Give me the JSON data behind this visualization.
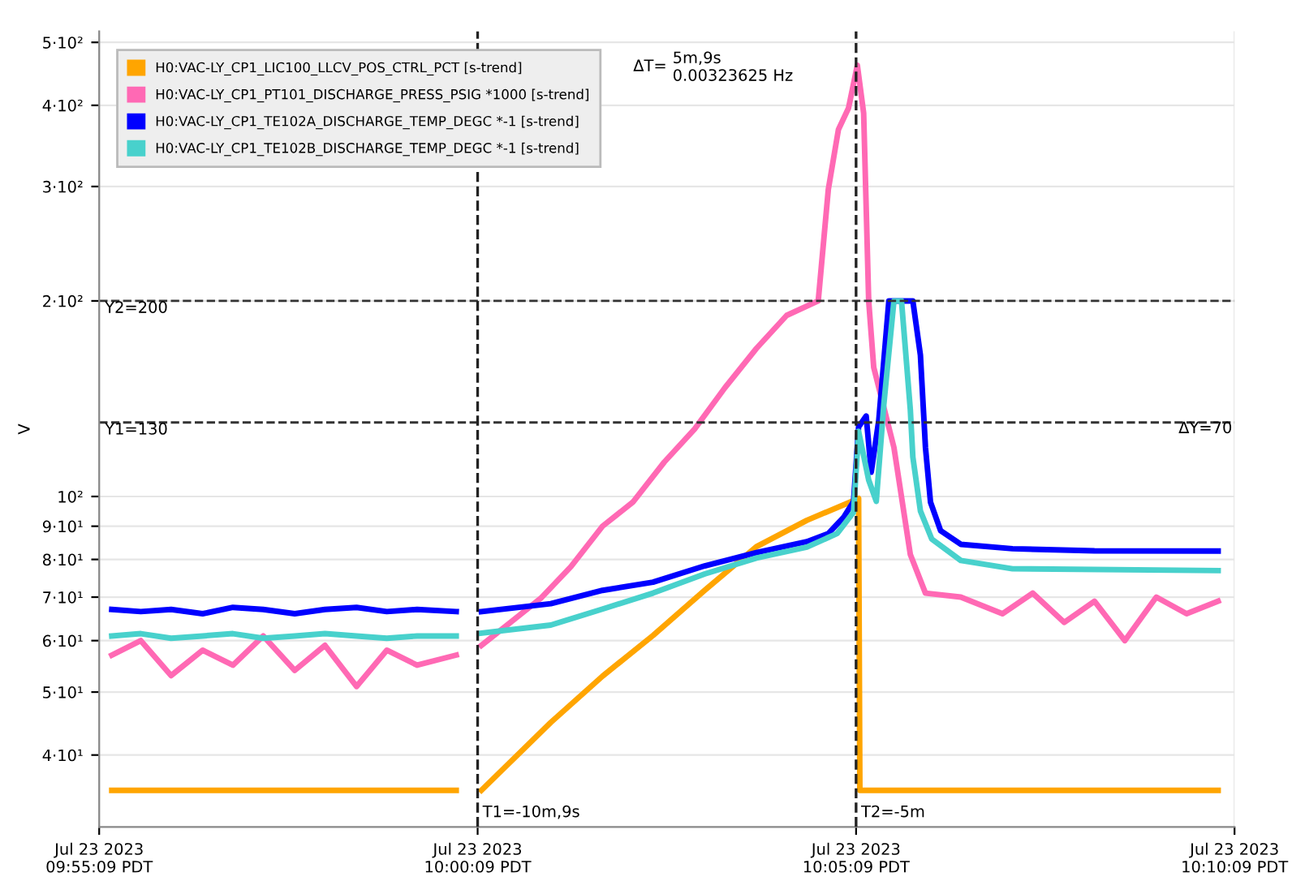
{
  "chart_data": {
    "type": "line",
    "ylabel": "V",
    "log": "y",
    "grid": true,
    "legend": "top left",
    "ylim": [
      31,
      520
    ],
    "yticks": [
      {
        "value": 40,
        "label": "4·10¹"
      },
      {
        "value": 50,
        "label": "5·10¹"
      },
      {
        "value": 60,
        "label": "6·10¹"
      },
      {
        "value": 70,
        "label": "7·10¹"
      },
      {
        "value": 80,
        "label": "8·10¹"
      },
      {
        "value": 90,
        "label": "9·10¹"
      },
      {
        "value": 100,
        "label": "10²"
      },
      {
        "value": 200,
        "label": "2·10²"
      },
      {
        "value": 300,
        "label": "3·10²"
      },
      {
        "value": 400,
        "label": "4·10²"
      },
      {
        "value": 500,
        "label": "5·10²"
      }
    ],
    "xlim": [
      "2023-07-23T09:55:09",
      "2023-07-23T10:10:09"
    ],
    "xticks": [
      {
        "value": "2023-07-23T09:55:09",
        "label": "Jul 23 2023\n09:55:09 PDT"
      },
      {
        "value": "2023-07-23T10:00:09",
        "label": "Jul 23 2023\n10:00:09 PDT"
      },
      {
        "value": "2023-07-23T10:05:09",
        "label": "Jul 23 2023\n10:05:09 PDT"
      },
      {
        "value": "2023-07-23T10:10:09",
        "label": "Jul 23 2023\n10:10:09 PDT"
      }
    ],
    "series": [
      {
        "name": "H0:VAC-LY_CP1_LIC100_LLCV_POS_CTRL_PCT [s-trend]",
        "color": "#ffa500",
        "x": [
          "2023-07-23T09:55:19",
          "2023-07-23T09:59:52",
          "2023-07-23T10:00:00",
          "2023-07-23T10:00:12",
          "2023-07-23T10:01:07",
          "2023-07-23T10:01:48",
          "2023-07-23T10:02:28",
          "2023-07-23T10:03:09",
          "2023-07-23T10:03:50",
          "2023-07-23T10:04:30",
          "2023-07-23T10:05:11",
          "2023-07-23T10:05:12",
          "2023-07-23T10:09:56"
        ],
        "values": [
          35.3,
          35.3,
          null,
          35.3,
          44.9,
          52.9,
          61.1,
          71.7,
          83.7,
          91.9,
          99.3,
          35.3,
          35.3
        ]
      },
      {
        "name": "H0:VAC-LY_CP1_PT101_DISCHARGE_PRESS_PSIG *1000 [s-trend]",
        "color": "#ff69b4",
        "x": [
          "2023-07-23T09:55:19",
          "2023-07-23T09:55:42",
          "2023-07-23T09:56:06",
          "2023-07-23T09:56:31",
          "2023-07-23T09:56:55",
          "2023-07-23T09:57:19",
          "2023-07-23T09:57:44",
          "2023-07-23T09:58:08",
          "2023-07-23T09:58:33",
          "2023-07-23T09:58:57",
          "2023-07-23T09:59:21",
          "2023-07-23T09:59:52",
          "2023-07-23T10:00:00",
          "2023-07-23T10:00:12",
          "2023-07-23T10:00:35",
          "2023-07-23T10:00:59",
          "2023-07-23T10:01:23",
          "2023-07-23T10:01:48",
          "2023-07-23T10:02:12",
          "2023-07-23T10:02:37",
          "2023-07-23T10:03:01",
          "2023-07-23T10:03:25",
          "2023-07-23T10:03:50",
          "2023-07-23T10:04:14",
          "2023-07-23T10:04:39",
          "2023-07-23T10:04:47",
          "2023-07-23T10:04:55",
          "2023-07-23T10:05:03",
          "2023-07-23T10:05:10",
          "2023-07-23T10:05:15",
          "2023-07-23T10:05:19",
          "2023-07-23T10:05:23",
          "2023-07-23T10:05:39",
          "2023-07-23T10:05:52",
          "2023-07-23T10:06:04",
          "2023-07-23T10:06:32",
          "2023-07-23T10:07:05",
          "2023-07-23T10:07:29",
          "2023-07-23T10:07:54",
          "2023-07-23T10:08:18",
          "2023-07-23T10:08:42",
          "2023-07-23T10:09:07",
          "2023-07-23T10:09:31",
          "2023-07-23T10:09:56"
        ],
        "values": [
          57,
          60,
          53,
          58,
          55,
          61,
          54,
          59,
          51,
          58,
          55,
          57,
          null,
          59,
          64,
          69.7,
          78,
          90,
          98,
          113,
          127,
          147,
          169,
          190,
          200,
          297,
          367,
          396,
          461,
          389,
          200,
          158,
          119,
          81.4,
          71,
          70,
          66,
          71,
          64,
          69,
          60,
          70,
          66,
          69
        ]
      },
      {
        "name": "H0:VAC-LY_CP1_TE102A_DISCHARGE_TEMP_DEGC *-1 [s-trend]",
        "color": "#0000ff",
        "x": [
          "2023-07-23T09:55:19",
          "2023-07-23T09:55:42",
          "2023-07-23T09:56:06",
          "2023-07-23T09:56:31",
          "2023-07-23T09:56:55",
          "2023-07-23T09:57:19",
          "2023-07-23T09:57:44",
          "2023-07-23T09:58:08",
          "2023-07-23T09:58:33",
          "2023-07-23T09:58:57",
          "2023-07-23T09:59:21",
          "2023-07-23T09:59:52",
          "2023-07-23T10:00:00",
          "2023-07-23T10:00:12",
          "2023-07-23T10:01:07",
          "2023-07-23T10:01:48",
          "2023-07-23T10:02:28",
          "2023-07-23T10:03:09",
          "2023-07-23T10:03:50",
          "2023-07-23T10:04:30",
          "2023-07-23T10:04:47",
          "2023-07-23T10:04:59",
          "2023-07-23T10:05:07",
          "2023-07-23T10:05:11",
          "2023-07-23T10:05:17",
          "2023-07-23T10:05:21",
          "2023-07-23T10:05:27",
          "2023-07-23T10:05:35",
          "2023-07-23T10:05:54",
          "2023-07-23T10:06:00",
          "2023-07-23T10:06:04",
          "2023-07-23T10:06:08",
          "2023-07-23T10:06:16",
          "2023-07-23T10:06:32",
          "2023-07-23T10:07:13",
          "2023-07-23T10:08:18",
          "2023-07-23T10:09:56"
        ],
        "values": [
          67,
          66.5,
          67,
          66,
          67.5,
          67,
          66,
          67,
          67.5,
          66.5,
          67,
          66.5,
          null,
          66.5,
          68.4,
          71.7,
          73.8,
          78.2,
          82,
          85.2,
          87.7,
          92.8,
          98.3,
          128,
          133,
          109,
          131,
          200,
          200,
          165,
          119,
          98,
          88.6,
          84.4,
          83.1,
          82.5,
          82.4
        ]
      },
      {
        "name": "H0:VAC-LY_CP1_TE102B_DISCHARGE_TEMP_DEGC *-1 [s-trend]",
        "color": "#48d1cc",
        "x": [
          "2023-07-23T09:55:19",
          "2023-07-23T09:55:42",
          "2023-07-23T09:56:06",
          "2023-07-23T09:56:31",
          "2023-07-23T09:56:55",
          "2023-07-23T09:57:19",
          "2023-07-23T09:57:44",
          "2023-07-23T09:58:08",
          "2023-07-23T09:58:33",
          "2023-07-23T09:58:57",
          "2023-07-23T09:59:21",
          "2023-07-23T09:59:52",
          "2023-07-23T10:00:00",
          "2023-07-23T10:00:12",
          "2023-07-23T10:01:07",
          "2023-07-23T10:01:48",
          "2023-07-23T10:02:28",
          "2023-07-23T10:03:09",
          "2023-07-23T10:03:50",
          "2023-07-23T10:04:30",
          "2023-07-23T10:04:54",
          "2023-07-23T10:05:07",
          "2023-07-23T10:05:11",
          "2023-07-23T10:05:19",
          "2023-07-23T10:05:25",
          "2023-07-23T10:05:31",
          "2023-07-23T10:05:39",
          "2023-07-23T10:05:45",
          "2023-07-23T10:05:52",
          "2023-07-23T10:05:54",
          "2023-07-23T10:06:00",
          "2023-07-23T10:06:09",
          "2023-07-23T10:06:32",
          "2023-07-23T10:07:13",
          "2023-07-23T10:09:56"
        ],
        "values": [
          61,
          61.5,
          60.5,
          61,
          61.5,
          60.5,
          61,
          61.5,
          61,
          60.5,
          61,
          61,
          null,
          61.6,
          63.4,
          67.1,
          71,
          76,
          80.4,
          83.6,
          87.7,
          94.6,
          126,
          106,
          98.3,
          138.6,
          200,
          200,
          136,
          115,
          95,
          86,
          79.7,
          77.4,
          76.9
        ]
      }
    ],
    "ref_lines": [
      {
        "axis": "y",
        "value": 200,
        "label": "Y2=200",
        "color": "#333333",
        "line_style": "dashed"
      },
      {
        "axis": "y",
        "value": 130,
        "label": "Y1=130",
        "color": "#333333",
        "line_style": "dashed"
      },
      {
        "axis": "x",
        "value": "2023-07-23T10:00:09",
        "label": "T1=-10m,9s",
        "color": "#222222",
        "line_style": "dashed"
      },
      {
        "axis": "x",
        "value": "2023-07-23T10:05:09",
        "label": "T2=-5m",
        "color": "#222222",
        "line_style": "dashed"
      }
    ],
    "annotations": [
      "ΔT=",
      "5m,9s\n0.00323625 Hz",
      "ΔY=70"
    ]
  }
}
